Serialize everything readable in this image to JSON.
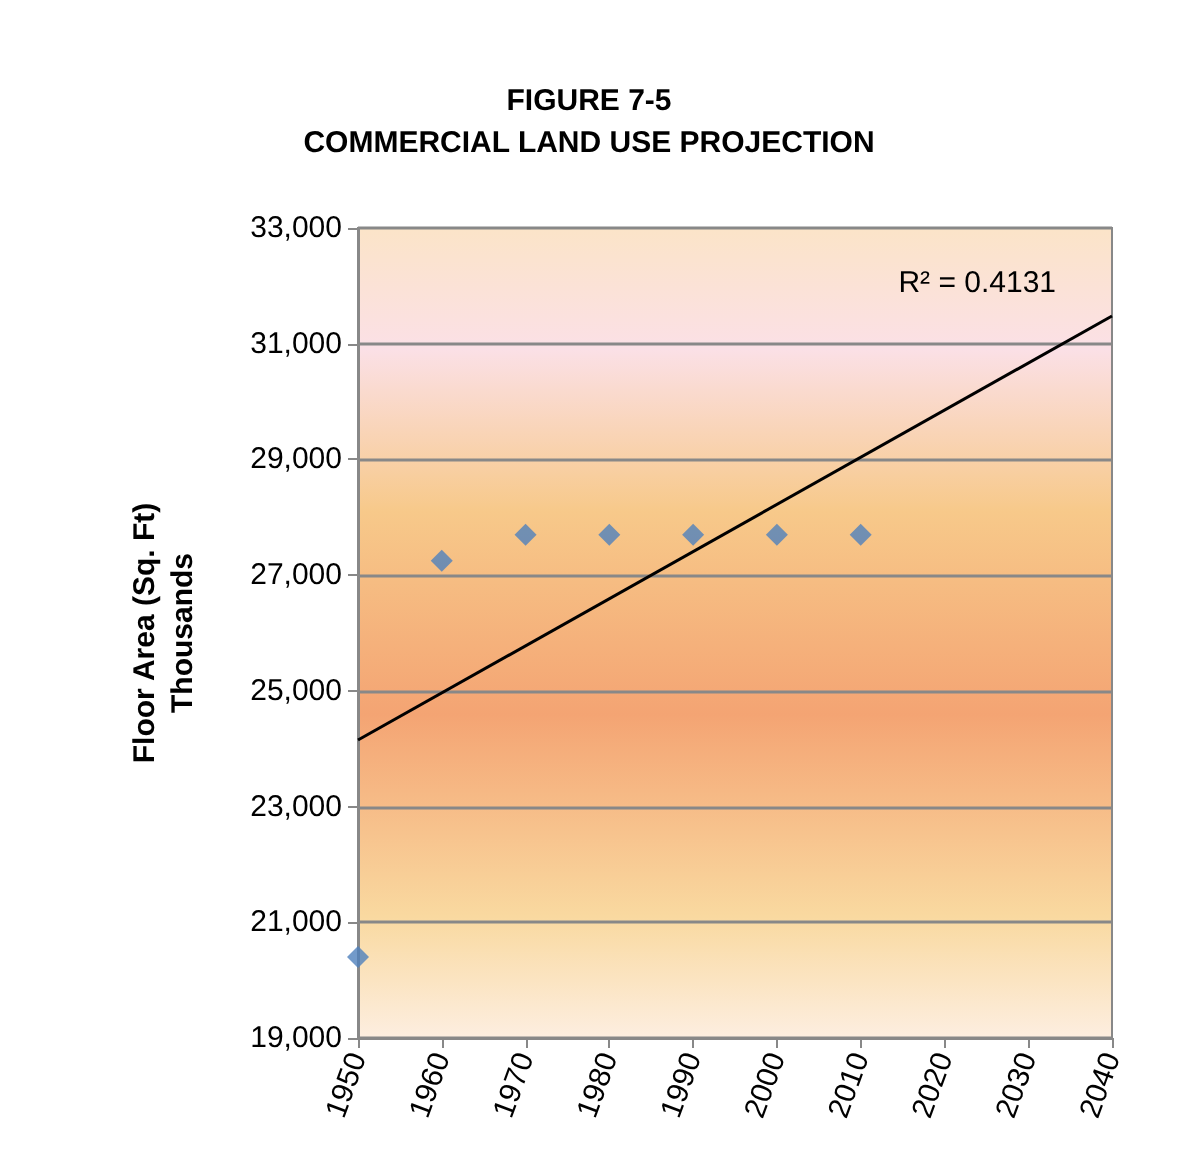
{
  "chart_data": {
    "type": "scatter",
    "title": "FIGURE 7-5",
    "subtitle": "COMMERCIAL LAND USE PROJECTION",
    "ylabel": "Floor Area (Sq. Ft)\nThousands",
    "annotations": [
      "R² = 0.4131"
    ],
    "series": [
      {
        "color": "#4f81bd",
        "marker": "diamond",
        "x": [
          1950,
          1960,
          1970,
          1980,
          1990,
          2000,
          2010
        ],
        "values": [
          20400,
          27250,
          27700,
          27700,
          27700,
          27700,
          27700
        ]
      },
      {
        "type": "line",
        "color": "#000000",
        "marker": "none",
        "line_style": "solid",
        "x": [
          1950,
          2040
        ],
        "values": [
          24150,
          31480
        ]
      }
    ],
    "xlim": [
      1950,
      2040
    ],
    "xticks": [
      1950,
      1960,
      1970,
      1980,
      1990,
      2000,
      2010,
      2020,
      2030,
      2040
    ],
    "ylim": [
      19000,
      33000
    ],
    "yticks": [
      {
        "value": 19000,
        "label": "19,000"
      },
      {
        "value": 21000,
        "label": "21,000"
      },
      {
        "value": 23000,
        "label": "23,000"
      },
      {
        "value": 25000,
        "label": "25,000"
      },
      {
        "value": 27000,
        "label": "27,000"
      },
      {
        "value": 29000,
        "label": "29,000"
      },
      {
        "value": 31000,
        "label": "31,000"
      },
      {
        "value": 33000,
        "label": "33,000"
      }
    ],
    "grid": "y"
  }
}
